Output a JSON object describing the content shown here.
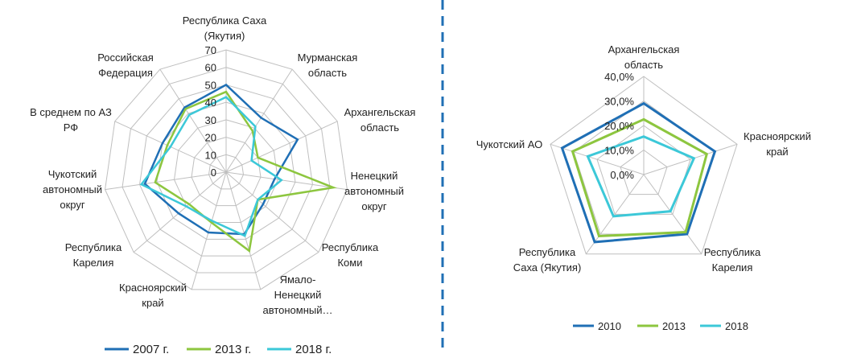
{
  "colors": {
    "s1": "#1F6FB5",
    "s2": "#8DC63F",
    "s3": "#3CC8D8",
    "grid": "#BFBFBF",
    "divider": "#1F6FB5"
  },
  "chart_data": [
    {
      "type": "radar",
      "title": "",
      "categories": [
        "Республика Саха\n(Якутия)",
        "Мурманская\nобласть",
        "Архангельская\nобласть",
        "Ненецкий\nавтономный\nокруг",
        "Республика\nКоми",
        "Ямало-\nНенецкий\nавтономный…",
        "Красноярский\nкрай",
        "Республика\nКарелия",
        "Чукотский\nавтономный\nокруг",
        "В среднем по АЗ\nРФ",
        "Российская\nФедерация"
      ],
      "rlim": [
        0,
        70
      ],
      "ticks": [
        0,
        10,
        20,
        30,
        40,
        50,
        60,
        70
      ],
      "tick_labels": [
        "0",
        "10",
        "20",
        "30",
        "40",
        "50",
        "60",
        "70"
      ],
      "series": [
        {
          "name": "2007 г.",
          "values": [
            50,
            37,
            45,
            28,
            28,
            37,
            36,
            36,
            47,
            40,
            44
          ]
        },
        {
          "name": "2013 г.",
          "values": [
            46,
            28,
            20,
            62,
            24,
            47,
            30,
            28,
            41,
            37,
            43
          ]
        },
        {
          "name": "2018 г.",
          "values": [
            43,
            31,
            16,
            32,
            24,
            38,
            29,
            30,
            49,
            35,
            39
          ]
        }
      ],
      "legend": "bottom"
    },
    {
      "type": "radar",
      "title": "",
      "categories": [
        "Архангельская\nобласть",
        "Красноярский\nкрай",
        "Республика\nКарелия",
        "Республика\nСаха (Якутия)",
        "Чукотский АО"
      ],
      "rlim": [
        0,
        40
      ],
      "ticks": [
        0,
        10,
        20,
        30,
        40
      ],
      "tick_labels": [
        "0,0%",
        "10,0%",
        "20,0%",
        "30,0%",
        "40,0%"
      ],
      "series": [
        {
          "name": "2010",
          "values": [
            29.0,
            30.5,
            30.0,
            34.0,
            35.0
          ]
        },
        {
          "name": "2013",
          "values": [
            22.5,
            27.0,
            29.0,
            31.0,
            30.5
          ]
        },
        {
          "name": "2018",
          "values": [
            15.5,
            21.5,
            18.5,
            21.0,
            24.0
          ]
        }
      ],
      "legend": "bottom"
    }
  ]
}
